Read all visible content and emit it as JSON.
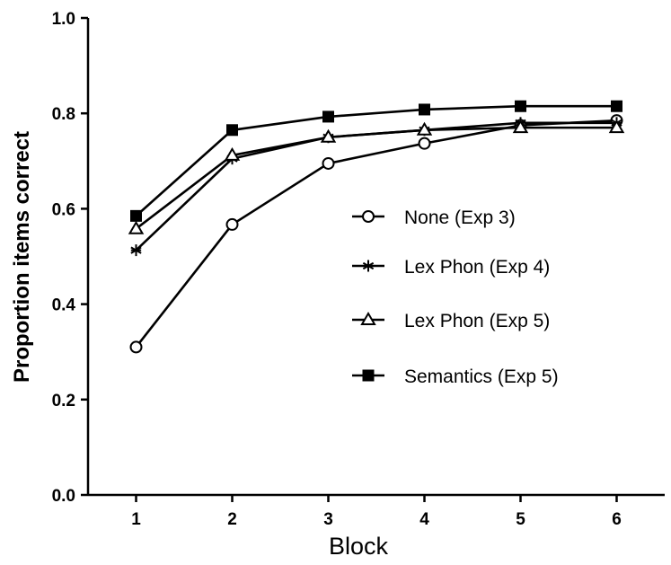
{
  "chart_data": {
    "type": "line",
    "xlabel": "Block",
    "ylabel": "Proportion items correct",
    "x": [
      1,
      2,
      3,
      4,
      5,
      6
    ],
    "xlim": [
      0.5,
      6.5
    ],
    "ylim": [
      0.0,
      1.0
    ],
    "yticks": [
      "0.0",
      "0.2",
      "0.4",
      "0.6",
      "0.8",
      "1.0"
    ],
    "xticks": [
      "1",
      "2",
      "3",
      "4",
      "5",
      "6"
    ],
    "grid": false,
    "legend_position": "center-right",
    "series": [
      {
        "name": "None (Exp 3)",
        "marker": "open-circle",
        "values": [
          0.31,
          0.567,
          0.695,
          0.737,
          0.775,
          0.785
        ]
      },
      {
        "name": "Lex Phon (Exp 4)",
        "marker": "asterisk",
        "values": [
          0.513,
          0.705,
          0.75,
          0.765,
          0.78,
          0.78
        ]
      },
      {
        "name": "Lex Phon (Exp 5)",
        "marker": "open-triangle",
        "values": [
          0.558,
          0.712,
          0.75,
          0.765,
          0.77,
          0.77
        ]
      },
      {
        "name": "Semantics (Exp 5)",
        "marker": "filled-square",
        "values": [
          0.585,
          0.765,
          0.793,
          0.808,
          0.815,
          0.815
        ]
      }
    ]
  }
}
